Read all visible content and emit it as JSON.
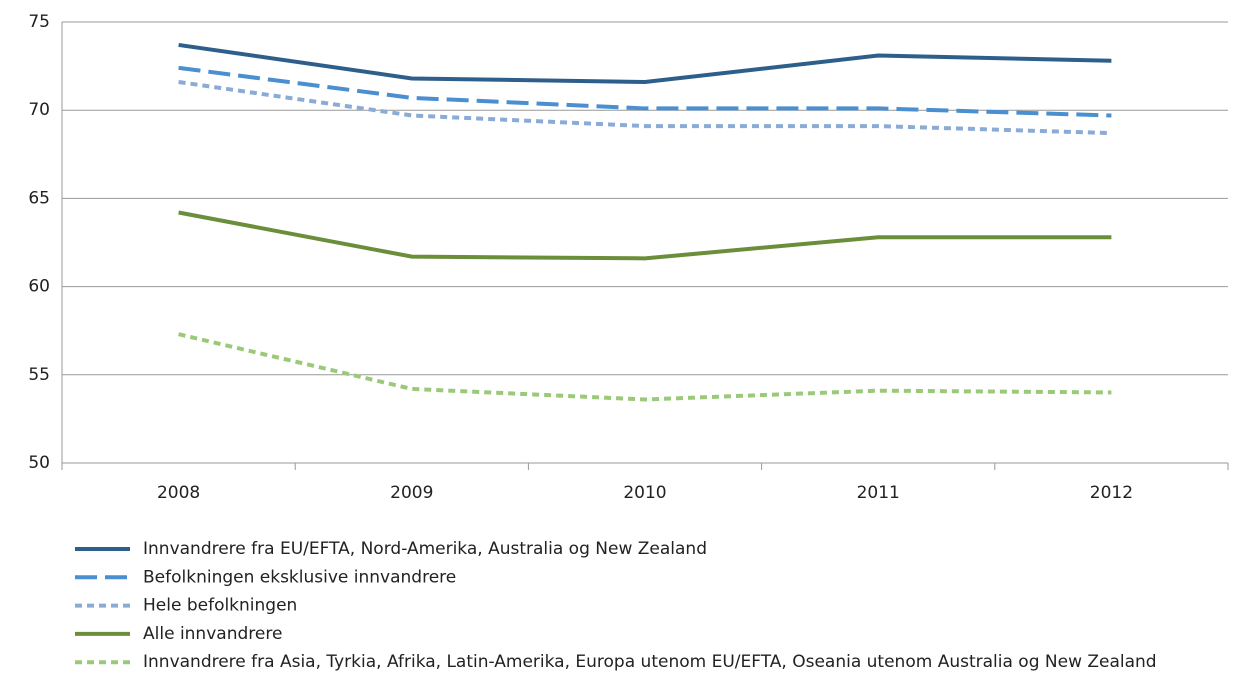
{
  "chart_data": {
    "type": "line",
    "categories": [
      "2008",
      "2009",
      "2010",
      "2011",
      "2012"
    ],
    "series": [
      {
        "name": "Innvandrere fra EU/EFTA, Nord-Amerika, Australia og New Zealand",
        "color": "#2e5f8a",
        "dash": "solid",
        "values": [
          73.7,
          71.8,
          71.6,
          73.1,
          72.8
        ]
      },
      {
        "name": "Befolkningen eksklusive innvandrere",
        "color": "#4a8fcf",
        "dash": "long",
        "values": [
          72.4,
          70.7,
          70.1,
          70.1,
          69.7
        ]
      },
      {
        "name": "Hele befolkningen",
        "color": "#8aabd6",
        "dash": "short",
        "values": [
          71.6,
          69.7,
          69.1,
          69.1,
          68.7
        ]
      },
      {
        "name": "Alle innvandrere",
        "color": "#6b8e3a",
        "dash": "solid",
        "values": [
          64.2,
          61.7,
          61.6,
          62.8,
          62.8
        ]
      },
      {
        "name": "Innvandrere fra Asia, Tyrkia, Afrika, Latin-Amerika, Europa utenom EU/EFTA, Oseania utenom Australia og New Zealand",
        "color": "#9bc97a",
        "dash": "short",
        "values": [
          57.3,
          54.2,
          53.6,
          54.1,
          54.0
        ]
      }
    ],
    "ylim": [
      50,
      75
    ],
    "yticks": [
      50,
      55,
      60,
      65,
      70,
      75
    ],
    "grid": true,
    "legend": "bottom"
  }
}
